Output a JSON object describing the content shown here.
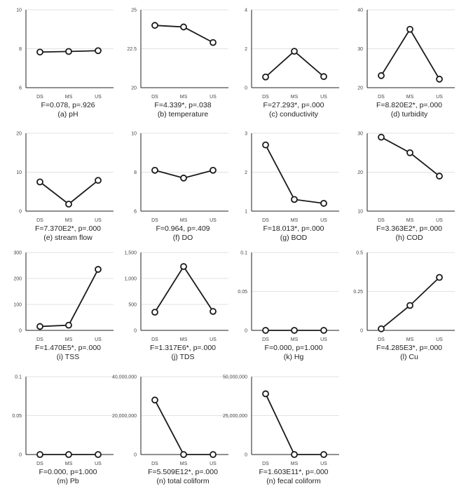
{
  "chart_data": [
    {
      "type": "line",
      "caption": "(a) pH",
      "stat": "F=0.078, p=.926",
      "categories": [
        "DS",
        "MS",
        "US"
      ],
      "values": [
        7.83,
        7.86,
        7.9
      ],
      "ylim": [
        6,
        10
      ],
      "yticks": [
        6,
        8,
        10
      ],
      "ytick_labels": [
        "6",
        "8",
        "10"
      ]
    },
    {
      "type": "line",
      "caption": "(b) temperature",
      "stat": "F=4.339*, p=.038",
      "categories": [
        "DS",
        "MS",
        "US"
      ],
      "values": [
        24.0,
        23.9,
        22.9
      ],
      "ylim": [
        20,
        25
      ],
      "yticks": [
        20,
        22.5,
        25
      ],
      "ytick_labels": [
        "20",
        "22.5",
        "25"
      ]
    },
    {
      "type": "line",
      "caption": "(c) conductivity",
      "stat": "F=27.293*, p=.000",
      "categories": [
        "DS",
        "MS",
        "US"
      ],
      "values": [
        0.55,
        1.87,
        0.57
      ],
      "ylim": [
        0,
        4
      ],
      "yticks": [
        0,
        2,
        4
      ],
      "ytick_labels": [
        "0",
        "2",
        "4"
      ]
    },
    {
      "type": "line",
      "caption": "(d) turbidity",
      "stat": "F=8.820E2*, p=.000",
      "categories": [
        "DS",
        "MS",
        "US"
      ],
      "values": [
        23.1,
        35,
        22.2
      ],
      "ylim": [
        20,
        40
      ],
      "yticks": [
        20,
        30,
        40
      ],
      "ytick_labels": [
        "20",
        "30",
        "40"
      ]
    },
    {
      "type": "line",
      "caption": "(e) stream flow",
      "stat": "F=7.370E2*, p=.000",
      "categories": [
        "DS",
        "MS",
        "US"
      ],
      "values": [
        7.5,
        1.8,
        7.9
      ],
      "ylim": [
        0,
        20
      ],
      "yticks": [
        0,
        10,
        20
      ],
      "ytick_labels": [
        "0",
        "10",
        "20"
      ]
    },
    {
      "type": "line",
      "caption": "(f) DO",
      "stat": "F=0.964, p=.409",
      "categories": [
        "DS",
        "MS",
        "US"
      ],
      "values": [
        8.1,
        7.7,
        8.1
      ],
      "ylim": [
        6,
        10
      ],
      "yticks": [
        6,
        8,
        10
      ],
      "ytick_labels": [
        "6",
        "8",
        "10"
      ]
    },
    {
      "type": "line",
      "caption": "(g) BOD",
      "stat": "F=18.013*, p=.000",
      "categories": [
        "DS",
        "MS",
        "US"
      ],
      "values": [
        2.7,
        1.3,
        1.2
      ],
      "ylim": [
        1,
        3
      ],
      "yticks": [
        1,
        2,
        3
      ],
      "ytick_labels": [
        "1",
        "2",
        "3"
      ]
    },
    {
      "type": "line",
      "caption": "(h) COD",
      "stat": "F=3.363E2*, p=.000",
      "categories": [
        "DS",
        "MS",
        "US"
      ],
      "values": [
        29,
        25,
        19
      ],
      "ylim": [
        10,
        30
      ],
      "yticks": [
        10,
        20,
        30
      ],
      "ytick_labels": [
        "10",
        "20",
        "30"
      ]
    },
    {
      "type": "line",
      "caption": "(i) TSS",
      "stat": "F=1.470E5*, p=.000",
      "categories": [
        "DS",
        "MS",
        "US"
      ],
      "values": [
        15,
        20,
        235
      ],
      "ylim": [
        0,
        300
      ],
      "yticks": [
        0,
        100,
        200,
        300
      ],
      "ytick_labels": [
        "0",
        "100",
        "200",
        "300"
      ]
    },
    {
      "type": "line",
      "caption": "(j) TDS",
      "stat": "F=1.317E6*, p=.000",
      "categories": [
        "DS",
        "MS",
        "US"
      ],
      "values": [
        350,
        1230,
        365
      ],
      "ylim": [
        0,
        1500
      ],
      "yticks": [
        0,
        500,
        1000,
        1500
      ],
      "ytick_labels": [
        "0",
        "500",
        "1,000",
        "1,500"
      ]
    },
    {
      "type": "line",
      "caption": "(k) Hg",
      "stat": "F=0.000, p=1.000",
      "categories": [
        "DS",
        "MS",
        "US"
      ],
      "values": [
        0,
        0,
        0
      ],
      "ylim": [
        0,
        0.1
      ],
      "yticks": [
        0,
        0.05,
        0.1
      ],
      "ytick_labels": [
        "0",
        "0.05",
        "0.1"
      ]
    },
    {
      "type": "line",
      "caption": "(l) Cu",
      "stat": "F=4.285E3*, p=.000",
      "categories": [
        "DS",
        "MS",
        "US"
      ],
      "values": [
        0.01,
        0.16,
        0.34
      ],
      "ylim": [
        0,
        0.5
      ],
      "yticks": [
        0,
        0.25,
        0.5
      ],
      "ytick_labels": [
        "0",
        "0.25",
        "0.5"
      ]
    },
    {
      "type": "line",
      "caption": "(m) Pb",
      "stat": "F=0.000, p=1.000",
      "categories": [
        "DS",
        "MS",
        "US"
      ],
      "values": [
        0,
        0,
        0
      ],
      "ylim": [
        0,
        0.1
      ],
      "yticks": [
        0,
        0.05,
        0.1
      ],
      "ytick_labels": [
        "0",
        "0.05",
        "0.1"
      ]
    },
    {
      "type": "line",
      "caption": "(n) total coliform",
      "stat": "F=5.509E12*, p=.000",
      "categories": [
        "DS",
        "MS",
        "US"
      ],
      "values": [
        28000000,
        0,
        0
      ],
      "ylim": [
        0,
        40000000
      ],
      "yticks": [
        0,
        20000000,
        40000000
      ],
      "ytick_labels": [
        "0",
        "20,000,000",
        "40,000,000"
      ]
    },
    {
      "type": "line",
      "caption": "(n) fecal coliform",
      "stat": "F=1.603E11*, p=.000",
      "categories": [
        "DS",
        "MS",
        "US"
      ],
      "values": [
        39000000,
        0,
        0
      ],
      "ylim": [
        0,
        50000000
      ],
      "yticks": [
        0,
        25000000,
        50000000
      ],
      "ytick_labels": [
        "0",
        "25,000,000",
        "50,000,000"
      ]
    }
  ],
  "colors": {
    "line": "#1a1a1a",
    "grid": "#e2e2e2",
    "marker_fill": "#ffffff"
  }
}
